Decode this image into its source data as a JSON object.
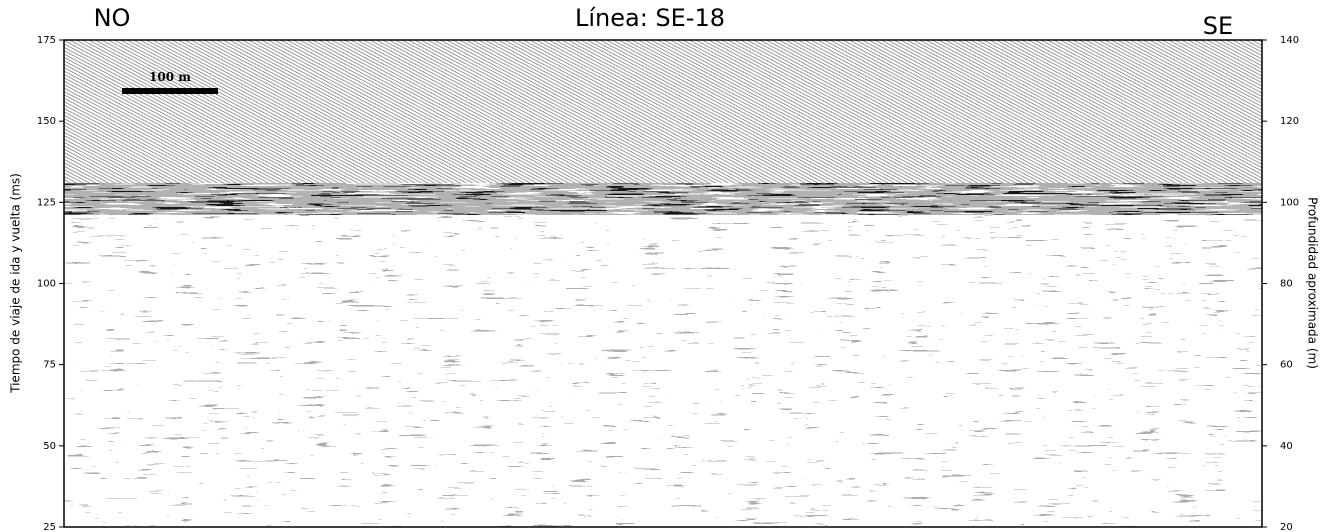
{
  "chart_data": {
    "type": "seismic",
    "title": "Línea: SE-18",
    "left_annotation": "NO",
    "right_annotation": "SE",
    "scale_bar_label": "100 m",
    "y_label": "Tiempo de viaje de ida y vuelta (ms)",
    "y2_label": "Profundidad aproximada (m)",
    "ylim": [
      25,
      175
    ],
    "yticks": [
      25,
      50,
      75,
      100,
      125,
      150,
      175
    ],
    "y2lim": [
      20,
      140
    ],
    "y2ticks": [
      20,
      40,
      60,
      80,
      100,
      120,
      140
    ]
  }
}
